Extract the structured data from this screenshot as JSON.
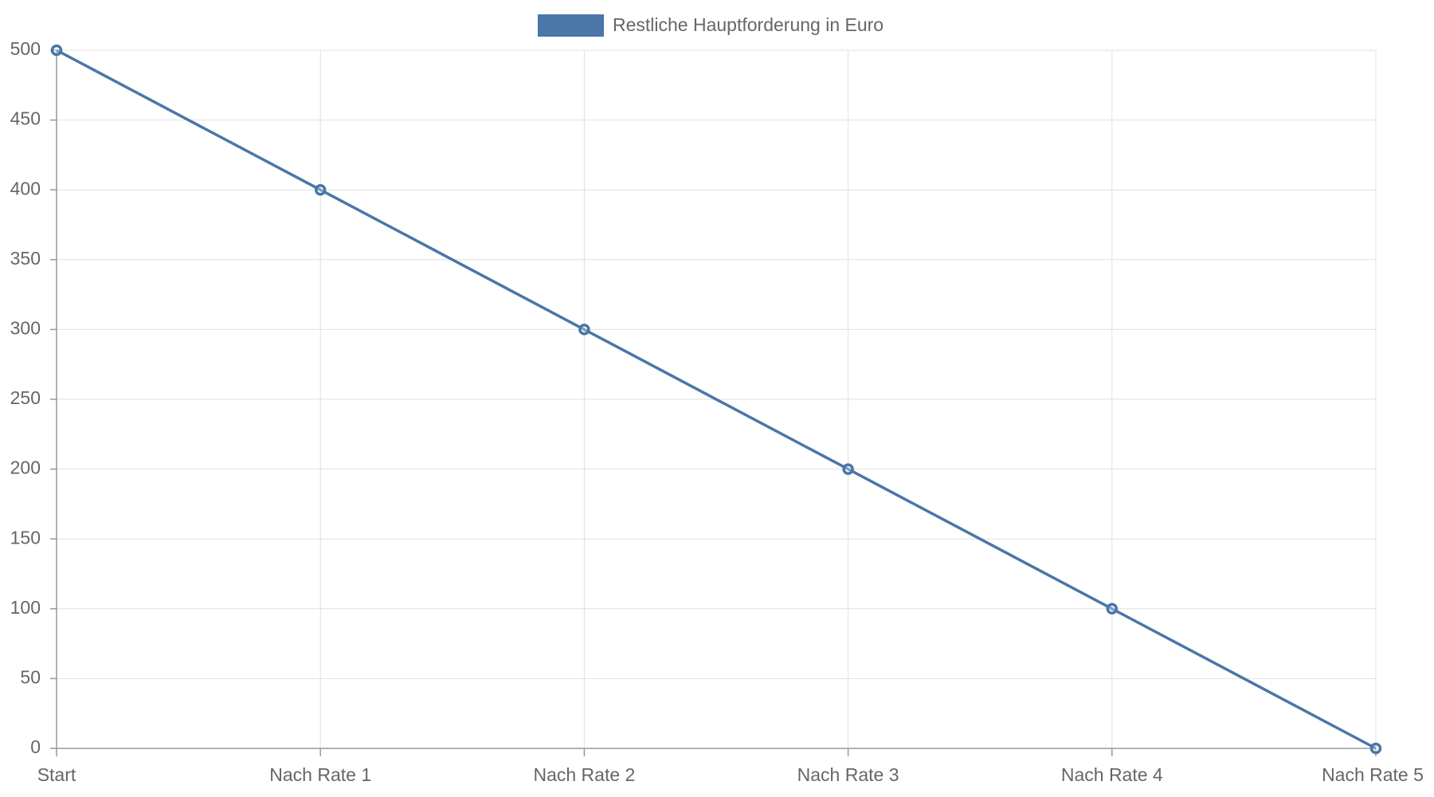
{
  "chart_data": {
    "type": "line",
    "categories": [
      "Start",
      "Nach Rate 1",
      "Nach Rate 2",
      "Nach Rate 3",
      "Nach Rate 4",
      "Nach Rate 5"
    ],
    "series": [
      {
        "name": "Restliche Hauptforderung in Euro",
        "color": "#4a76a8",
        "values": [
          500,
          400,
          300,
          200,
          100,
          0
        ]
      }
    ],
    "ylim": [
      0,
      500
    ],
    "yticks": [
      0,
      50,
      100,
      150,
      200,
      250,
      300,
      350,
      400,
      450,
      500
    ],
    "grid": true,
    "legend": "top"
  }
}
